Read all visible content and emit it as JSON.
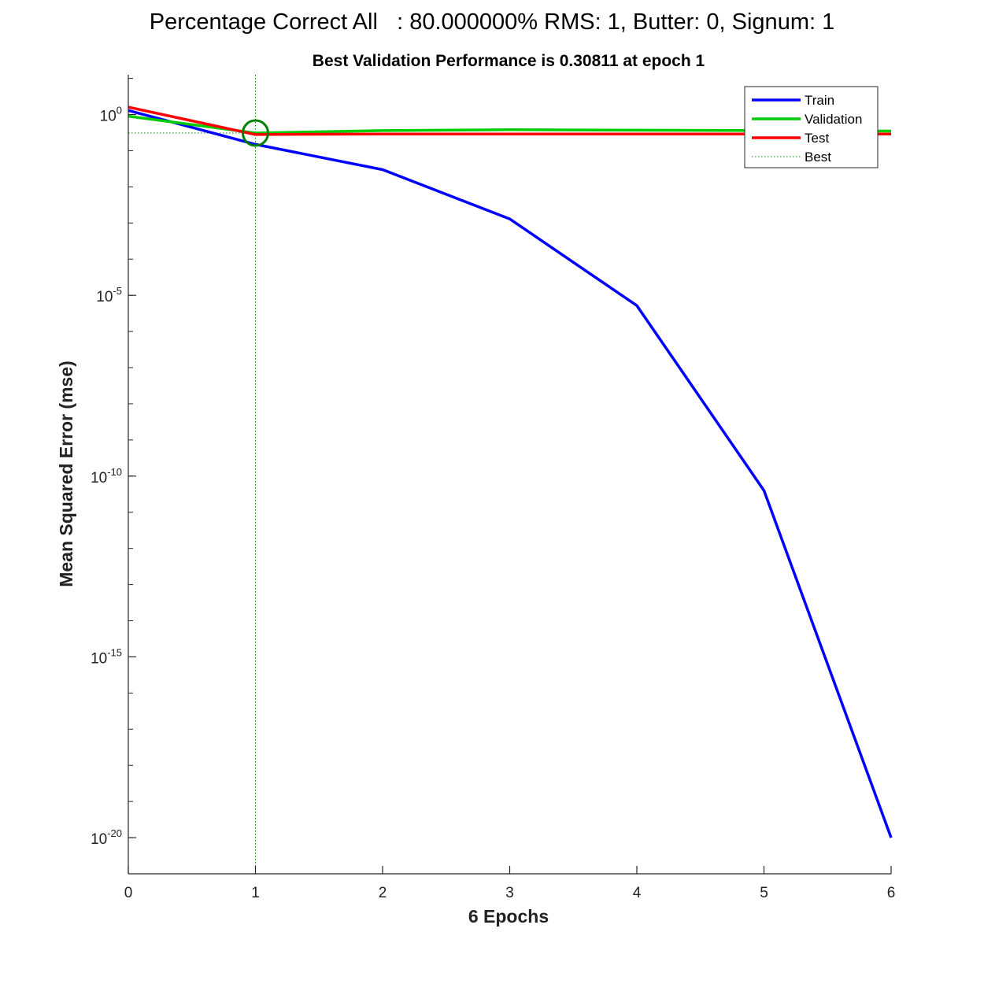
{
  "figure_title": "Percentage Correct All   : 80.000000% RMS: 1, Butter: 0, Signum: 1",
  "chart_data": {
    "type": "line",
    "title": "Best Validation Performance is 0.30811 at epoch 1",
    "xlabel": "6 Epochs",
    "ylabel": "Mean Squared Error  (mse)",
    "y_scale": "log",
    "xlim": [
      0,
      6
    ],
    "ylim_exponent": [
      -21,
      1.1
    ],
    "x_ticks": [
      "0",
      "1",
      "2",
      "3",
      "4",
      "5",
      "6"
    ],
    "y_ticks": [
      {
        "base": "10",
        "exp": "0",
        "exponent": 0
      },
      {
        "base": "10",
        "exp": "-5",
        "exponent": -5
      },
      {
        "base": "10",
        "exp": "-10",
        "exponent": -10
      },
      {
        "base": "10",
        "exp": "-15",
        "exponent": -15
      },
      {
        "base": "10",
        "exp": "-20",
        "exponent": -20
      }
    ],
    "x": [
      0,
      1,
      2,
      3,
      4,
      5,
      6
    ],
    "series": [
      {
        "name": "Train",
        "color": "#0000ff",
        "line": "solid",
        "values": [
          1.3,
          0.15,
          0.03,
          0.0013,
          5.2e-06,
          4e-11,
          1e-20
        ]
      },
      {
        "name": "Validation",
        "color": "#00cc00",
        "line": "solid",
        "values": [
          0.9,
          0.30811,
          0.36,
          0.38,
          0.37,
          0.36,
          0.35
        ]
      },
      {
        "name": "Test",
        "color": "#ff0000",
        "line": "solid",
        "values": [
          1.6,
          0.28,
          0.29,
          0.29,
          0.29,
          0.29,
          0.29
        ]
      },
      {
        "name": "Best",
        "color": "#008000",
        "line": "dotted"
      }
    ],
    "best": {
      "epoch": 1,
      "value": 0.30811,
      "marker_color": "#008000"
    },
    "legend_position": "top-right",
    "grid": false
  }
}
